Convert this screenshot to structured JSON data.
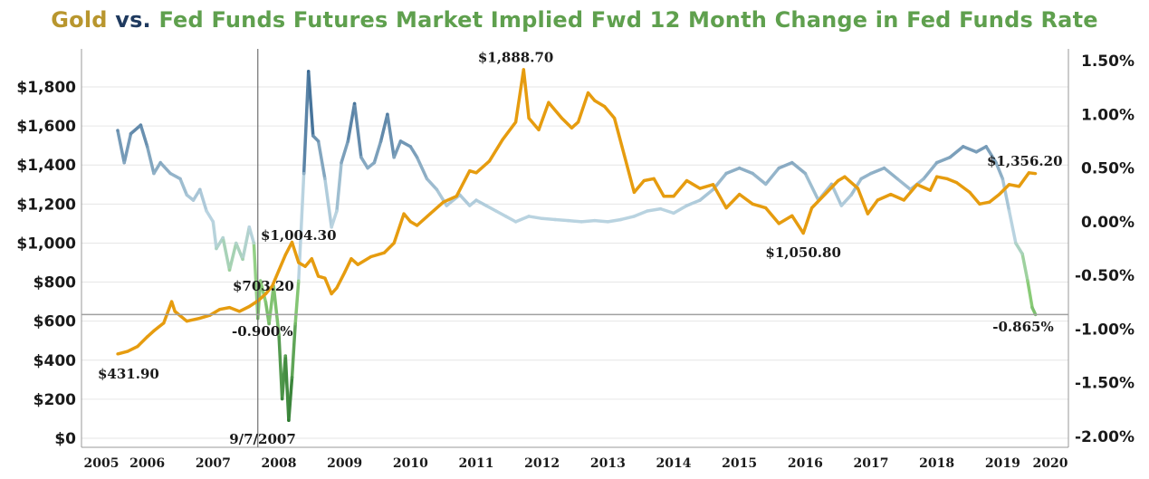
{
  "title": {
    "part1": "Gold",
    "part2": " vs. ",
    "part3": "Fed Funds Futures Market Implied Fwd 12 Month Change in Fed Funds Rate"
  },
  "colors": {
    "gold": "#e69c0f",
    "title_gold": "#b8962e",
    "title_vs": "#1f3a5f",
    "title_green": "#5fa04e",
    "fed_high": "#3c6a94",
    "fed_mid": "#b9d3e0",
    "fed_low": "#2f7a32",
    "grid": "#e6e6e6",
    "axis": "#999999",
    "refline": "#a0a0a0"
  },
  "chart_data": {
    "type": "line",
    "title": "Gold vs. Fed Funds Futures Market Implied Fwd 12 Month Change in Fed Funds Rate",
    "x_ticks": [
      "2005",
      "2006",
      "2007",
      "2008",
      "2009",
      "2010",
      "2011",
      "2012",
      "2013",
      "2014",
      "2015",
      "2016",
      "2017",
      "2018",
      "2019",
      "2020"
    ],
    "xlim": [
      2005,
      2020
    ],
    "y_left": {
      "ticks": [
        "$0",
        "$200",
        "$400",
        "$600",
        "$800",
        "$1,000",
        "$1,200",
        "$1,400",
        "$1,600",
        "$1,800"
      ],
      "tick_values": [
        0,
        200,
        400,
        600,
        800,
        1000,
        1200,
        1400,
        1600,
        1800
      ],
      "lim": [
        0,
        2000
      ]
    },
    "y_right": {
      "ticks": [
        "-2.00%",
        "-1.50%",
        "-1.00%",
        "-0.50%",
        "0.00%",
        "0.50%",
        "1.00%",
        "1.50%"
      ],
      "tick_values": [
        -2.0,
        -1.5,
        -1.0,
        -0.5,
        0.0,
        0.5,
        1.0,
        1.5
      ],
      "lim": [
        -2.0,
        1.5
      ]
    },
    "series": [
      {
        "axis": "left",
        "points": [
          [
            2005.55,
            431.9
          ],
          [
            2005.7,
            445
          ],
          [
            2005.85,
            470
          ],
          [
            2006.0,
            520
          ],
          [
            2006.1,
            550
          ],
          [
            2006.25,
            590
          ],
          [
            2006.37,
            700
          ],
          [
            2006.42,
            650
          ],
          [
            2006.6,
            600
          ],
          [
            2006.8,
            615
          ],
          [
            2006.95,
            630
          ],
          [
            2007.1,
            660
          ],
          [
            2007.25,
            670
          ],
          [
            2007.4,
            650
          ],
          [
            2007.55,
            675
          ],
          [
            2007.68,
            703.2
          ],
          [
            2007.8,
            740
          ],
          [
            2007.9,
            780
          ],
          [
            2008.0,
            860
          ],
          [
            2008.1,
            940
          ],
          [
            2008.2,
            1004.3
          ],
          [
            2008.3,
            900
          ],
          [
            2008.4,
            880
          ],
          [
            2008.5,
            920
          ],
          [
            2008.6,
            830
          ],
          [
            2008.7,
            820
          ],
          [
            2008.8,
            740
          ],
          [
            2008.88,
            770
          ],
          [
            2009.0,
            850
          ],
          [
            2009.1,
            920
          ],
          [
            2009.2,
            890
          ],
          [
            2009.4,
            930
          ],
          [
            2009.6,
            950
          ],
          [
            2009.75,
            1000
          ],
          [
            2009.9,
            1150
          ],
          [
            2010.0,
            1110
          ],
          [
            2010.1,
            1090
          ],
          [
            2010.3,
            1150
          ],
          [
            2010.5,
            1210
          ],
          [
            2010.7,
            1240
          ],
          [
            2010.9,
            1370
          ],
          [
            2011.0,
            1360
          ],
          [
            2011.2,
            1420
          ],
          [
            2011.4,
            1530
          ],
          [
            2011.6,
            1620
          ],
          [
            2011.72,
            1888.7
          ],
          [
            2011.8,
            1640
          ],
          [
            2011.95,
            1580
          ],
          [
            2012.1,
            1720
          ],
          [
            2012.3,
            1640
          ],
          [
            2012.45,
            1590
          ],
          [
            2012.55,
            1620
          ],
          [
            2012.7,
            1770
          ],
          [
            2012.8,
            1730
          ],
          [
            2012.95,
            1700
          ],
          [
            2013.1,
            1640
          ],
          [
            2013.25,
            1450
          ],
          [
            2013.4,
            1260
          ],
          [
            2013.55,
            1320
          ],
          [
            2013.7,
            1330
          ],
          [
            2013.85,
            1240
          ],
          [
            2014.0,
            1240
          ],
          [
            2014.2,
            1320
          ],
          [
            2014.4,
            1280
          ],
          [
            2014.6,
            1300
          ],
          [
            2014.8,
            1180
          ],
          [
            2015.0,
            1250
          ],
          [
            2015.2,
            1200
          ],
          [
            2015.4,
            1180
          ],
          [
            2015.6,
            1100
          ],
          [
            2015.8,
            1140
          ],
          [
            2015.97,
            1050.8
          ],
          [
            2016.1,
            1180
          ],
          [
            2016.3,
            1250
          ],
          [
            2016.5,
            1320
          ],
          [
            2016.6,
            1340
          ],
          [
            2016.8,
            1280
          ],
          [
            2016.95,
            1150
          ],
          [
            2017.1,
            1220
          ],
          [
            2017.3,
            1250
          ],
          [
            2017.5,
            1220
          ],
          [
            2017.7,
            1300
          ],
          [
            2017.9,
            1270
          ],
          [
            2018.0,
            1340
          ],
          [
            2018.15,
            1330
          ],
          [
            2018.3,
            1310
          ],
          [
            2018.5,
            1260
          ],
          [
            2018.65,
            1200
          ],
          [
            2018.8,
            1210
          ],
          [
            2018.95,
            1250
          ],
          [
            2019.1,
            1300
          ],
          [
            2019.25,
            1290
          ],
          [
            2019.4,
            1360
          ],
          [
            2019.5,
            1356.2
          ]
        ]
      },
      {
        "axis": "right",
        "points": [
          [
            2005.55,
            0.85
          ],
          [
            2005.65,
            0.55
          ],
          [
            2005.75,
            0.82
          ],
          [
            2005.9,
            0.9
          ],
          [
            2006.0,
            0.7
          ],
          [
            2006.1,
            0.45
          ],
          [
            2006.2,
            0.55
          ],
          [
            2006.35,
            0.45
          ],
          [
            2006.5,
            0.4
          ],
          [
            2006.6,
            0.25
          ],
          [
            2006.7,
            0.2
          ],
          [
            2006.8,
            0.3
          ],
          [
            2006.9,
            0.1
          ],
          [
            2007.0,
            0.0
          ],
          [
            2007.05,
            -0.25
          ],
          [
            2007.15,
            -0.15
          ],
          [
            2007.25,
            -0.45
          ],
          [
            2007.35,
            -0.2
          ],
          [
            2007.45,
            -0.35
          ],
          [
            2007.55,
            -0.05
          ],
          [
            2007.62,
            -0.2
          ],
          [
            2007.68,
            -0.9
          ],
          [
            2007.72,
            -0.55
          ],
          [
            2007.8,
            -0.75
          ],
          [
            2007.85,
            -0.95
          ],
          [
            2007.92,
            -0.6
          ],
          [
            2008.0,
            -1.05
          ],
          [
            2008.05,
            -1.65
          ],
          [
            2008.1,
            -1.25
          ],
          [
            2008.15,
            -1.85
          ],
          [
            2008.2,
            -1.45
          ],
          [
            2008.25,
            -0.95
          ],
          [
            2008.3,
            -0.55
          ],
          [
            2008.38,
            0.45
          ],
          [
            2008.45,
            1.4
          ],
          [
            2008.52,
            0.8
          ],
          [
            2008.6,
            0.75
          ],
          [
            2008.7,
            0.4
          ],
          [
            2008.8,
            -0.05
          ],
          [
            2008.88,
            0.1
          ],
          [
            2008.95,
            0.55
          ],
          [
            2009.05,
            0.75
          ],
          [
            2009.15,
            1.1
          ],
          [
            2009.25,
            0.6
          ],
          [
            2009.35,
            0.5
          ],
          [
            2009.45,
            0.55
          ],
          [
            2009.55,
            0.75
          ],
          [
            2009.65,
            1.0
          ],
          [
            2009.75,
            0.6
          ],
          [
            2009.85,
            0.75
          ],
          [
            2010.0,
            0.7
          ],
          [
            2010.1,
            0.6
          ],
          [
            2010.25,
            0.4
          ],
          [
            2010.4,
            0.3
          ],
          [
            2010.55,
            0.15
          ],
          [
            2010.75,
            0.25
          ],
          [
            2010.9,
            0.15
          ],
          [
            2011.0,
            0.2
          ],
          [
            2011.15,
            0.15
          ],
          [
            2011.3,
            0.1
          ],
          [
            2011.45,
            0.05
          ],
          [
            2011.6,
            0.0
          ],
          [
            2011.8,
            0.05
          ],
          [
            2012.0,
            0.03
          ],
          [
            2012.2,
            0.02
          ],
          [
            2012.4,
            0.01
          ],
          [
            2012.6,
            0.0
          ],
          [
            2012.8,
            0.01
          ],
          [
            2013.0,
            0.0
          ],
          [
            2013.2,
            0.02
          ],
          [
            2013.4,
            0.05
          ],
          [
            2013.6,
            0.1
          ],
          [
            2013.8,
            0.12
          ],
          [
            2014.0,
            0.08
          ],
          [
            2014.2,
            0.15
          ],
          [
            2014.4,
            0.2
          ],
          [
            2014.6,
            0.3
          ],
          [
            2014.8,
            0.45
          ],
          [
            2015.0,
            0.5
          ],
          [
            2015.2,
            0.45
          ],
          [
            2015.4,
            0.35
          ],
          [
            2015.6,
            0.5
          ],
          [
            2015.8,
            0.55
          ],
          [
            2016.0,
            0.45
          ],
          [
            2016.2,
            0.2
          ],
          [
            2016.4,
            0.35
          ],
          [
            2016.55,
            0.15
          ],
          [
            2016.7,
            0.25
          ],
          [
            2016.85,
            0.4
          ],
          [
            2017.0,
            0.45
          ],
          [
            2017.2,
            0.5
          ],
          [
            2017.4,
            0.4
          ],
          [
            2017.6,
            0.3
          ],
          [
            2017.8,
            0.4
          ],
          [
            2018.0,
            0.55
          ],
          [
            2018.2,
            0.6
          ],
          [
            2018.4,
            0.7
          ],
          [
            2018.6,
            0.65
          ],
          [
            2018.75,
            0.7
          ],
          [
            2018.9,
            0.55
          ],
          [
            2019.0,
            0.4
          ],
          [
            2019.1,
            0.1
          ],
          [
            2019.2,
            -0.2
          ],
          [
            2019.3,
            -0.3
          ],
          [
            2019.38,
            -0.55
          ],
          [
            2019.45,
            -0.8
          ],
          [
            2019.5,
            -0.865
          ]
        ]
      }
    ],
    "annotations": [
      {
        "text": "$431.90",
        "x": 2005.5,
        "y_axis": "left",
        "y": 330
      },
      {
        "text": "$703.20",
        "x": 2007.45,
        "y_axis": "left",
        "y": 780
      },
      {
        "text": "-0.900%",
        "x": 2007.75,
        "y_axis": "right",
        "y": -1.02
      },
      {
        "text": "$1,004.30",
        "x": 2008.2,
        "y_axis": "left",
        "y": 1040
      },
      {
        "text": "9/7/2007",
        "x": 2007.68,
        "y_axis": "left",
        "y": -5
      },
      {
        "text": "$1,888.70",
        "x": 2011.6,
        "y_axis": "left",
        "y": 1950
      },
      {
        "text": "$1,050.80",
        "x": 2015.97,
        "y_axis": "left",
        "y": 950
      },
      {
        "text": "$1,356.20",
        "x": 2019.4,
        "y_axis": "left",
        "y": 1420
      },
      {
        "text": "-0.865%",
        "x": 2019.5,
        "y_axis": "right",
        "y": -0.98
      }
    ],
    "reference_lines": {
      "vertical_x": 2007.68,
      "horizontal_right_y": -0.865
    },
    "grid": true
  }
}
